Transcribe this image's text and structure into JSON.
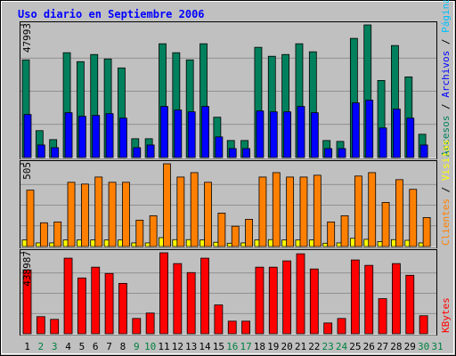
{
  "chart_data": {
    "type": "bar",
    "title": "Uso diario en Septiembre 2006",
    "categories": [
      "1",
      "2",
      "3",
      "4",
      "5",
      "6",
      "7",
      "8",
      "9",
      "10",
      "11",
      "12",
      "13",
      "14",
      "15",
      "16",
      "17",
      "18",
      "19",
      "20",
      "21",
      "22",
      "23",
      "24",
      "25",
      "26",
      "27",
      "28",
      "29",
      "30",
      "31"
    ],
    "category_colors": [
      "#000000",
      "#008040",
      "#008040",
      "#000000",
      "#000000",
      "#000000",
      "#000000",
      "#000000",
      "#008040",
      "#008040",
      "#000000",
      "#000000",
      "#000000",
      "#000000",
      "#000000",
      "#008040",
      "#008040",
      "#000000",
      "#000000",
      "#000000",
      "#000000",
      "#000000",
      "#008040",
      "#008040",
      "#000000",
      "#000000",
      "#000000",
      "#000000",
      "#000000",
      "#008040",
      "#008040"
    ],
    "legend_separator": " / ",
    "panels": [
      {
        "ylim": [
          0,
          47993
        ],
        "yticks": [
          47993
        ],
        "series": [
          {
            "name": "Accesos",
            "color": "#00805c",
            "values": [
              35350,
              9730,
              6490,
              37940,
              34700,
              37290,
              35670,
              32430,
              6810,
              6810,
              41180,
              37940,
              35350,
              41180,
              14590,
              6160,
              6160,
              39890,
              36650,
              37290,
              41180,
              38270,
              6160,
              5840,
              43130,
              47993,
              27890,
              40540,
              29190,
              8430,
              0
            ]
          },
          {
            "name": "Archivos",
            "color": "#0000ff",
            "values": [
              15570,
              4540,
              3570,
              16220,
              14920,
              15240,
              15890,
              14270,
              3570,
              4540,
              18490,
              17190,
              16540,
              18490,
              7460,
              3240,
              3240,
              16860,
              16540,
              16540,
              18490,
              16220,
              3240,
              3240,
              19780,
              20760,
              10700,
              17510,
              14270,
              4540,
              0
            ]
          }
        ],
        "legend_extra": [
          {
            "name": "Páginas",
            "color": "#00c0ff"
          }
        ]
      },
      {
        "ylim": [
          0,
          505
        ],
        "yticks": [
          505
        ],
        "series": [
          {
            "name": "Visitas",
            "color": "#ffff00",
            "values": [
              40,
              22,
              22,
              40,
              40,
              40,
              40,
              40,
              22,
              22,
              54,
              42,
              42,
              40,
              26,
              20,
              22,
              40,
              42,
              40,
              40,
              40,
              20,
              22,
              50,
              44,
              30,
              42,
              38,
              22,
              0
            ]
          },
          {
            "name": "Clientes",
            "color": "#ff8000",
            "values": [
              344,
              145,
              150,
              392,
              381,
              424,
              392,
              392,
              161,
              188,
              505,
              424,
              451,
              392,
              204,
              124,
              166,
              424,
              451,
              424,
              424,
              435,
              150,
              188,
              430,
              451,
              269,
              408,
              349,
              177,
              0
            ]
          }
        ],
        "legend_order": [
          1,
          0
        ]
      },
      {
        "ylim": [
          0,
          438987
        ],
        "yticks": [
          438987
        ],
        "series": [
          {
            "name": "KBytes",
            "color": "#ff0000",
            "values": [
              346300,
              92700,
              78000,
              409700,
              302400,
              360900,
              326800,
              273100,
              82900,
              112200,
              438987,
              380400,
              331600,
              409700,
              156100,
              68300,
              68300,
              360900,
              360900,
              395000,
              433400,
              351100,
              58500,
              82900,
              400000,
              370700,
              190200,
              380400,
              316900,
              97500,
              0
            ]
          }
        ]
      }
    ]
  }
}
